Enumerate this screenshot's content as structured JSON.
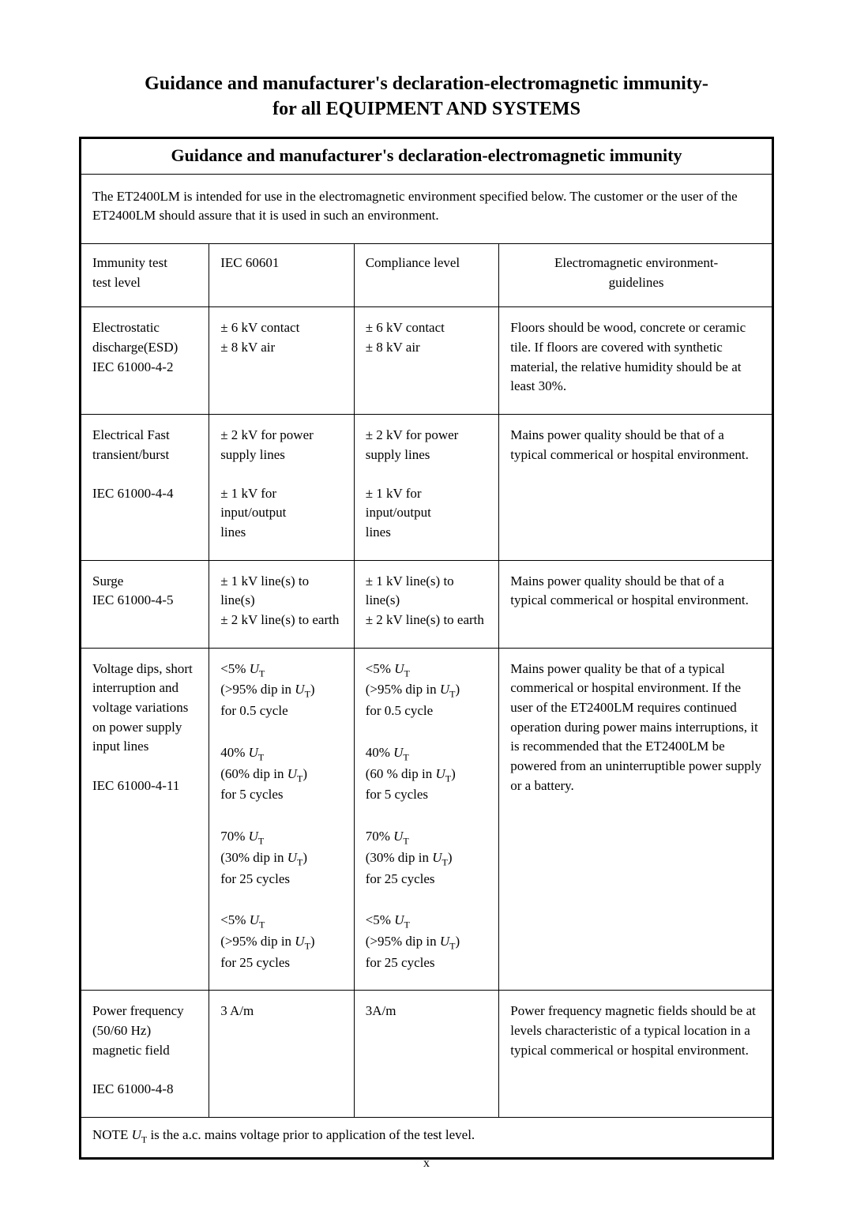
{
  "page": {
    "title_line1": "Guidance and manufacturer's declaration-electromagnetic immunity-",
    "title_line2": "for all EQUIPMENT AND SYSTEMS",
    "table_title": "Guidance and manufacturer's declaration-electromagnetic immunity",
    "intro": "The ET2400LM is intended for use in the electromagnetic environment specified below. The customer or the user of the ET2400LM should assure that it is used in such an environment.",
    "page_number": "x",
    "col_widths": [
      "18.5%",
      "21%",
      "21%",
      "39.5%"
    ]
  },
  "headers": {
    "c1a": "Immunity test",
    "c1b": "test level",
    "c2": "IEC 60601",
    "c3": "Compliance level",
    "c4a": "Electromagnetic environment-",
    "c4b": "guidelines"
  },
  "rows": {
    "r0": {
      "c1_l1": "Electrostatic",
      "c1_l2": "discharge(ESD)",
      "c1_l3": "IEC 61000-4-2",
      "c2_l1": "±  6 kV contact",
      "c2_l2": "±  8 kV air",
      "c3_l1": "± 6 kV contact",
      "c3_l2": "± 8 kV air",
      "c4": "Floors should be wood, concrete or ceramic tile. If floors are covered with synthetic material, the relative humidity should be at least 30%."
    },
    "r1": {
      "c1_l1": "Electrical Fast",
      "c1_l2": "transient/burst",
      "c1_l3": "IEC 61000-4-4",
      "c2_l1": "± 2 kV for power",
      "c2_l2": "supply lines",
      "c2_l3": "± 1 kV for input/output",
      "c2_l4": "lines",
      "c3_l1": "± 2 kV for power",
      "c3_l2": "supply lines",
      "c3_l3": "± 1 kV for input/output",
      "c3_l4": "lines",
      "c4": "Mains power quality should be that of a typical commerical or hospital environment."
    },
    "r2": {
      "c1_l1": "Surge",
      "c1_l2": "IEC 61000-4-5",
      "c2_l1": "± 1 kV line(s) to line(s)",
      "c2_l2": "± 2 kV line(s) to earth",
      "c3_l1": "± 1 kV line(s) to line(s)",
      "c3_l2": "± 2 kV line(s) to earth",
      "c4": "Mains power quality should be that of a typical commerical or hospital environment."
    },
    "r3": {
      "c1_l1": "Voltage dips, short",
      "c1_l2": "interruption and",
      "c1_l3": "voltage variations",
      "c1_l4": "on power supply",
      "c1_l5": "input lines",
      "c1_l6": "IEC 61000-4-11",
      "b1_l1_pre": "<5% ",
      "b1_l2_pre": "(>95% dip in ",
      "b1_l2_post": ")",
      "b1_l3": "for 0.5 cycle",
      "b2_l1_pre": "40% ",
      "b2_l2_pre": "(60% dip in ",
      "b2_l2b_pre": "(60 % dip in ",
      "b2_l2_post": ")",
      "b2_l3": "for 5 cycles",
      "b3_l1_pre": "70% ",
      "b3_l2_pre": "(30% dip in ",
      "b3_l2_post": ")",
      "b3_l3": "for 25 cycles",
      "b4_l1_pre": "<5% ",
      "b4_l2_pre": "(>95% dip in ",
      "b4_l2_post": ")",
      "b4_l3": "for 25 cycles",
      "c4": "Mains power quality be that of a typical commerical or hospital environment. If the user of the ET2400LM requires continued operation during power mains interruptions, it is recommended that the ET2400LM be powered from an uninterruptible power supply or a battery."
    },
    "r4": {
      "c1_l1": "Power frequency",
      "c1_l2": "(50/60 Hz)",
      "c1_l3": "magnetic field",
      "c1_l4": "IEC 61000-4-8",
      "c2": "3 A/m",
      "c3": "3A/m",
      "c4": "Power frequency magnetic fields should be at levels characteristic of a typical location in a typical commerical or hospital environment."
    }
  },
  "note": {
    "pre": "NOTE   ",
    "post": " is the a.c. mains voltage prior to application of the test level."
  },
  "ut": "U",
  "ut_sub": "T"
}
